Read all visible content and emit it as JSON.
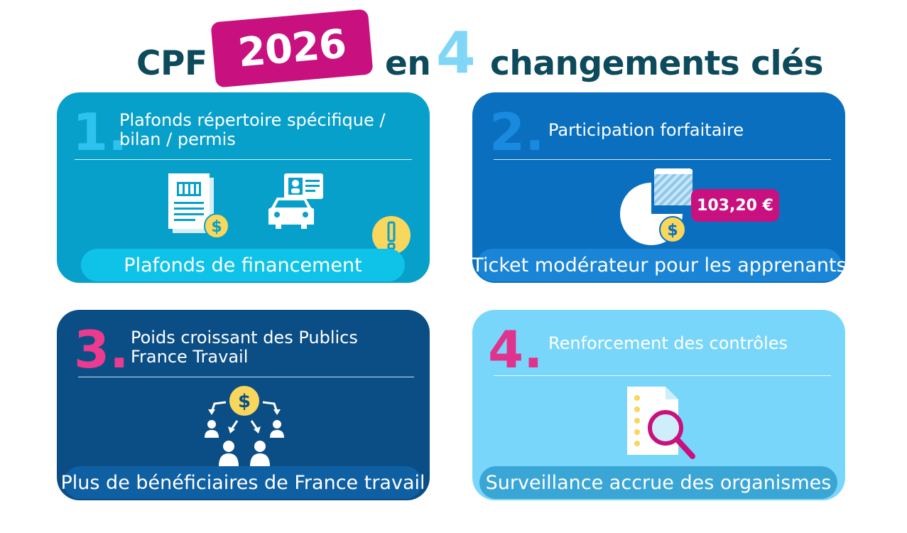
{
  "title": {
    "prefix": "CPF",
    "year": "2026",
    "middle": "en",
    "count": "4",
    "suffix": "changements clés"
  },
  "colors": {
    "dark_teal": "#0d4a5c",
    "magenta": "#c8117f",
    "light_blue": "#7fd6f6",
    "card1": "#07a0ca",
    "card2": "#0a6fbe",
    "card3": "#0b4e86",
    "card4": "#79d6fb",
    "yellow": "#f9d65c"
  },
  "cards": [
    {
      "number": "1.",
      "title_lines": [
        "Plafonds répertoire spécifique /",
        "bilan / permis"
      ],
      "pill": "Plafonds de financement",
      "icons": [
        "document-dollar-icon",
        "car-id-card-icon",
        "warning-icon"
      ]
    },
    {
      "number": "2.",
      "title_lines": [
        "Participation forfaitaire"
      ],
      "pill": "Ticket modérateur pour les apprenants",
      "amount": "103,20 €",
      "icons": [
        "pie-chart-dollar-icon"
      ]
    },
    {
      "number": "3.",
      "title_lines": [
        "Poids croissant des Publics",
        "France Travail"
      ],
      "pill": "Plus de bénéficiaires de France travail",
      "icons": [
        "funds-distribution-icon"
      ]
    },
    {
      "number": "4.",
      "title_lines": [
        "Renforcement des contrôles"
      ],
      "pill": "Surveillance accrue des organismes",
      "icons": [
        "document-magnifier-icon"
      ]
    }
  ]
}
